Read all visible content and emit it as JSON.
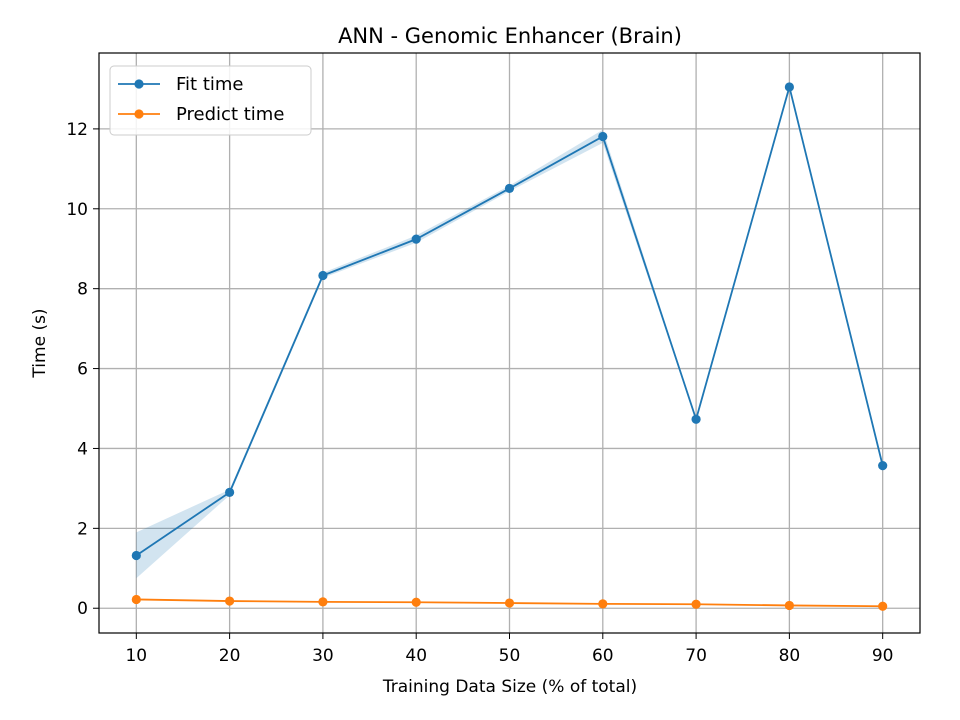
{
  "chart_data": {
    "type": "line",
    "title": "ANN - Genomic Enhancer (Brain)",
    "xlabel": "Training Data Size (% of total)",
    "ylabel": "Time (s)",
    "x": [
      10,
      20,
      30,
      40,
      50,
      60,
      70,
      80,
      90
    ],
    "xticks": [
      10,
      20,
      30,
      40,
      50,
      60,
      70,
      80,
      90
    ],
    "yticks": [
      0,
      2,
      4,
      6,
      8,
      10,
      12
    ],
    "xlim": [
      6,
      94
    ],
    "ylim": [
      -0.62,
      13.9
    ],
    "grid": true,
    "legend_position": "top-left",
    "series": [
      {
        "name": "Fit time",
        "color": "#1f77b4",
        "values": [
          1.32,
          2.9,
          8.33,
          9.24,
          10.51,
          11.81,
          4.73,
          13.05,
          3.57
        ],
        "band_lower": [
          0.75,
          2.83,
          8.27,
          9.15,
          10.44,
          11.65,
          4.7,
          13.0,
          3.55
        ],
        "band_upper": [
          1.9,
          2.97,
          8.4,
          9.33,
          10.58,
          11.98,
          4.76,
          13.1,
          3.6
        ]
      },
      {
        "name": "Predict time",
        "color": "#ff7f0e",
        "values": [
          0.22,
          0.18,
          0.16,
          0.15,
          0.13,
          0.11,
          0.1,
          0.07,
          0.05
        ],
        "band_lower": [
          0.2,
          0.17,
          0.15,
          0.14,
          0.12,
          0.1,
          0.09,
          0.06,
          0.04
        ],
        "band_upper": [
          0.24,
          0.19,
          0.17,
          0.16,
          0.14,
          0.12,
          0.11,
          0.08,
          0.06
        ]
      }
    ]
  }
}
